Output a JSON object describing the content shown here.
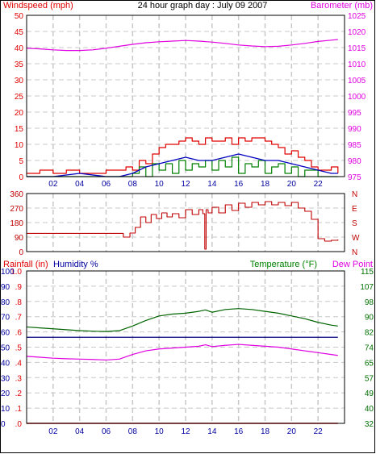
{
  "title": "24 hour graph day : July 09 2007",
  "colors": {
    "wind": "#e00000",
    "gust": "#e00000",
    "wind_avg": "#0000c0",
    "wind_low": "#008000",
    "baro": "#e000e0",
    "dir": "#c00000",
    "temp": "#006400",
    "dew": "#e000e0",
    "hum": "#000080",
    "rain": "#e00000",
    "grid": "#c8c8c8",
    "frame": "#000000",
    "left_axis_blue": "#0000a0",
    "right_axis_green": "#007000"
  },
  "chart_data": [
    {
      "type": "line",
      "title": "24 hour graph day : July 09 2007",
      "ylabel": "Windspeed (mph)",
      "y2label": "Barometer (mb)",
      "x_ticks": [
        "02",
        "04",
        "06",
        "08",
        "10",
        "12",
        "14",
        "16",
        "18",
        "20",
        "22"
      ],
      "y_ticks": [
        "0",
        "5",
        "10",
        "15",
        "20",
        "25",
        "30",
        "35",
        "40",
        "45",
        "50"
      ],
      "y2_ticks": [
        "975",
        "980",
        "985",
        "990",
        "995",
        "1000",
        "1005",
        "1010",
        "1015",
        "1020",
        "1025"
      ],
      "ylim": [
        0,
        50
      ],
      "y2lim": [
        975,
        1025
      ],
      "grid": true,
      "series": [
        {
          "name": "Windspeed (mph)",
          "axis": "left",
          "x": [
            0,
            1,
            2,
            3,
            4,
            5,
            6,
            7,
            7.5,
            8,
            8.5,
            9,
            9.5,
            10,
            10.5,
            11,
            11.5,
            12,
            12.5,
            13,
            13.5,
            14,
            14.5,
            15,
            15.5,
            16,
            16.5,
            17,
            17.5,
            18,
            18.5,
            19,
            19.5,
            20,
            20.5,
            21,
            21.5,
            22,
            22.5,
            23,
            23.5
          ],
          "y": [
            1,
            2,
            1,
            2,
            1,
            1,
            2,
            2,
            3,
            2,
            5,
            4,
            7,
            9,
            10,
            10,
            11,
            12,
            11,
            10,
            12,
            11,
            11,
            12,
            10,
            12,
            11,
            12,
            12,
            11,
            10,
            9,
            7,
            8,
            6,
            5,
            3,
            2,
            2,
            3,
            1
          ]
        },
        {
          "name": "Wind average",
          "axis": "left",
          "x": [
            0,
            2,
            4,
            6,
            7,
            8,
            9,
            10,
            11,
            12,
            13,
            14,
            15,
            16,
            17,
            18,
            19,
            20,
            21,
            22,
            23,
            23.5
          ],
          "y": [
            0,
            0,
            1,
            0,
            0,
            1,
            3,
            4,
            5,
            6,
            5,
            5,
            6,
            7,
            6,
            5,
            5,
            4,
            3,
            2,
            1,
            1
          ]
        },
        {
          "name": "Wind low",
          "axis": "left",
          "x": [
            0,
            6,
            7,
            8,
            8.5,
            9,
            9.5,
            10,
            10.5,
            11,
            11.5,
            12,
            12.5,
            13,
            13.5,
            14,
            14.5,
            15,
            15.5,
            16,
            16.5,
            17,
            17.5,
            18,
            18.5,
            19,
            19.5,
            20,
            20.5,
            21,
            22,
            23.5
          ],
          "y": [
            0,
            0,
            0,
            1,
            3,
            0,
            4,
            2,
            4,
            1,
            5,
            2,
            4,
            3,
            5,
            2,
            5,
            3,
            6,
            1,
            4,
            3,
            5,
            1,
            3,
            4,
            1,
            3,
            0,
            2,
            0,
            0
          ]
        },
        {
          "name": "Barometer (mb)",
          "axis": "right",
          "x": [
            0,
            1,
            2,
            3,
            4,
            5,
            6,
            7,
            8,
            9,
            10,
            11,
            12,
            13,
            14,
            15,
            16,
            17,
            18,
            19,
            20,
            21,
            22,
            23,
            23.5
          ],
          "y": [
            1014.8,
            1014.6,
            1014.3,
            1014.1,
            1014.1,
            1014.3,
            1014.8,
            1015.4,
            1016.0,
            1016.5,
            1016.8,
            1017.0,
            1017.2,
            1017.0,
            1016.7,
            1016.3,
            1015.8,
            1015.5,
            1015.3,
            1015.4,
            1015.8,
            1016.3,
            1016.9,
            1017.3,
            1017.5
          ]
        }
      ]
    },
    {
      "type": "line",
      "ylabel": "",
      "y_ticks": [
        "0",
        "90",
        "180",
        "270",
        "360"
      ],
      "y2_ticks": [
        "N",
        "W",
        "S",
        "E",
        "N"
      ],
      "ylim": [
        0,
        360
      ],
      "grid": true,
      "series": [
        {
          "name": "Wind direction",
          "x": [
            0,
            1,
            2,
            3,
            4,
            5,
            6,
            7,
            7.3,
            7.8,
            8.2,
            8.6,
            9.0,
            9.4,
            9.8,
            10.2,
            10.6,
            11,
            11.5,
            12,
            12.5,
            13,
            13.3,
            13.45,
            13.55,
            13.7,
            14,
            14.5,
            15,
            15.5,
            16,
            16.5,
            17,
            17.5,
            18,
            18.5,
            19,
            19.5,
            20,
            20.5,
            21,
            21.5,
            22,
            22.5,
            23,
            23.5
          ],
          "y": [
            113,
            113,
            113,
            113,
            113,
            113,
            113,
            113,
            90,
            115,
            150,
            215,
            180,
            230,
            205,
            240,
            215,
            235,
            210,
            260,
            230,
            260,
            235,
            15,
            260,
            240,
            275,
            240,
            290,
            255,
            300,
            275,
            305,
            290,
            310,
            290,
            305,
            285,
            305,
            270,
            250,
            200,
            80,
            65,
            70,
            75
          ]
        }
      ]
    },
    {
      "type": "line",
      "ylabel": "Rainfall (in)",
      "ylabel2": "Humidity %",
      "y2label": "Temperature (°F)",
      "y2label2": "Dew Point",
      "x_ticks": [
        "02",
        "04",
        "06",
        "08",
        "10",
        "12",
        "14",
        "16",
        "18",
        "20",
        "22"
      ],
      "rain_ticks": [
        ".0",
        ".1",
        ".2",
        ".3",
        ".4",
        ".5",
        ".6",
        ".7",
        ".8",
        ".9",
        "1.0"
      ],
      "humidity_ticks": [
        "0",
        "10",
        "20",
        "30",
        "40",
        "50",
        "60",
        "70",
        "80",
        "90",
        "100"
      ],
      "temp_ticks": [
        "32",
        "40",
        "49",
        "57",
        "65",
        "74",
        "82",
        "90",
        "98",
        "107",
        "115"
      ],
      "temp_lim": [
        32,
        115
      ],
      "grid": true,
      "series": [
        {
          "name": "Temperature (°F)",
          "axis": "temp",
          "x": [
            0,
            1,
            2,
            3,
            4,
            5,
            6,
            7,
            8,
            9,
            10,
            11,
            12,
            13,
            13.5,
            14,
            15,
            16,
            17,
            18,
            19,
            20,
            21,
            22,
            23,
            23.5
          ],
          "y": [
            84.5,
            84.0,
            83.5,
            83.0,
            82.5,
            82.2,
            82.0,
            82.5,
            85.0,
            88.0,
            90.5,
            91.5,
            92.0,
            93.0,
            93.8,
            92.5,
            94.0,
            94.5,
            94.0,
            93.0,
            92.0,
            90.5,
            89.0,
            87.0,
            85.5,
            85.0
          ]
        },
        {
          "name": "Dew Point",
          "axis": "temp",
          "x": [
            0,
            1,
            2,
            3,
            4,
            5,
            6,
            7,
            8,
            9,
            10,
            11,
            12,
            13,
            13.5,
            14,
            15,
            16,
            17,
            18,
            19,
            20,
            21,
            22,
            23,
            23.5
          ],
          "y": [
            68.5,
            68.0,
            67.5,
            67.2,
            67.0,
            66.8,
            66.5,
            67.0,
            69.5,
            71.5,
            72.5,
            73.0,
            73.5,
            74.0,
            74.8,
            73.8,
            74.5,
            75.0,
            74.5,
            74.0,
            73.5,
            72.5,
            71.5,
            70.5,
            69.5,
            69.0
          ]
        },
        {
          "name": "Humidity %",
          "axis": "humidity",
          "x": [
            0,
            23.5
          ],
          "y": [
            56.5,
            56.5
          ]
        },
        {
          "name": "Rainfall (in)",
          "axis": "rain",
          "x": [
            0,
            23.5
          ],
          "y": [
            0,
            0
          ]
        }
      ]
    }
  ]
}
